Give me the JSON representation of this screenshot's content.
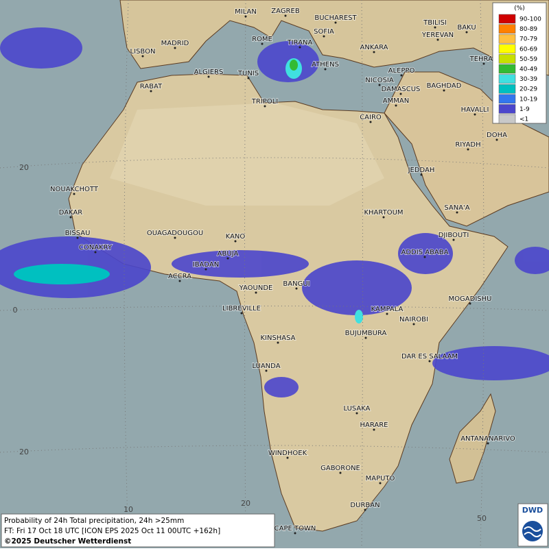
{
  "map": {
    "cities": [
      "MILAN",
      "ZAGREB",
      "BUCHAREST",
      "SOFIA",
      "TBILISI",
      "BAKU",
      "YEREVAN",
      "MADRID",
      "ROME",
      "TIRANA",
      "ANKARA",
      "LISBON",
      "TEHRAN",
      "ATHENS",
      "ALGIERS",
      "TUNIS",
      "ALEPPO",
      "RABAT",
      "NICOSIA",
      "BAGHDAD",
      "DAMASCUS",
      "AMMAN",
      "TRIPOLI",
      "HAVALLI",
      "CAIRO",
      "DOHA",
      "RIYADH",
      "JEDDAH",
      "NOUAKCHOTT",
      "SANA'A",
      "DAKAR",
      "KHARTOUM",
      "BISSAU",
      "OUAGADOUGOU",
      "KANO",
      "DJIBOUTI",
      "CONAKRY",
      "ABUJA",
      "ADDIS ABABA",
      "IBADAN",
      "ACCRA",
      "BANGUI",
      "YAOUNDE",
      "MOGADISHU",
      "LIBREVILLE",
      "KAMPALA",
      "NAIROBI",
      "BUJUMBURA",
      "KINSHASA",
      "DAR ES SALAAM",
      "LUANDA",
      "LUSAKA",
      "HARARE",
      "ANTANANARIVO",
      "WINDHOEK",
      "GABORONE",
      "MAPUTO",
      "DURBAN",
      "CAPE TOWN"
    ],
    "grid_labels": [
      "20",
      "0",
      "20",
      "10",
      "20",
      "50"
    ]
  },
  "legend": {
    "unit": "(%)",
    "items": [
      {
        "label": "90-100",
        "color": "#d00000"
      },
      {
        "label": "80-89",
        "color": "#ff8000"
      },
      {
        "label": "70-79",
        "color": "#ffc040"
      },
      {
        "label": "60-69",
        "color": "#ffff00"
      },
      {
        "label": "50-59",
        "color": "#c8e000"
      },
      {
        "label": "40-49",
        "color": "#33bb33"
      },
      {
        "label": "30-39",
        "color": "#40e0e0"
      },
      {
        "label": "20-29",
        "color": "#00c0c0"
      },
      {
        "label": "10-19",
        "color": "#3377ee"
      },
      {
        "label": "1-9",
        "color": "#4b46cc"
      },
      {
        "label": "<1",
        "color": "#c8c8c8"
      }
    ]
  },
  "caption": {
    "line1": "Probability of 24h Total precipitation, 24h >25mm",
    "line2": "FT: Fri 17 Oct 18 UTC [ICON EPS 2025 Oct 11 00UTC +162h]",
    "line3": "©2025 Deutscher Wetterdienst"
  },
  "logo": "DWD"
}
